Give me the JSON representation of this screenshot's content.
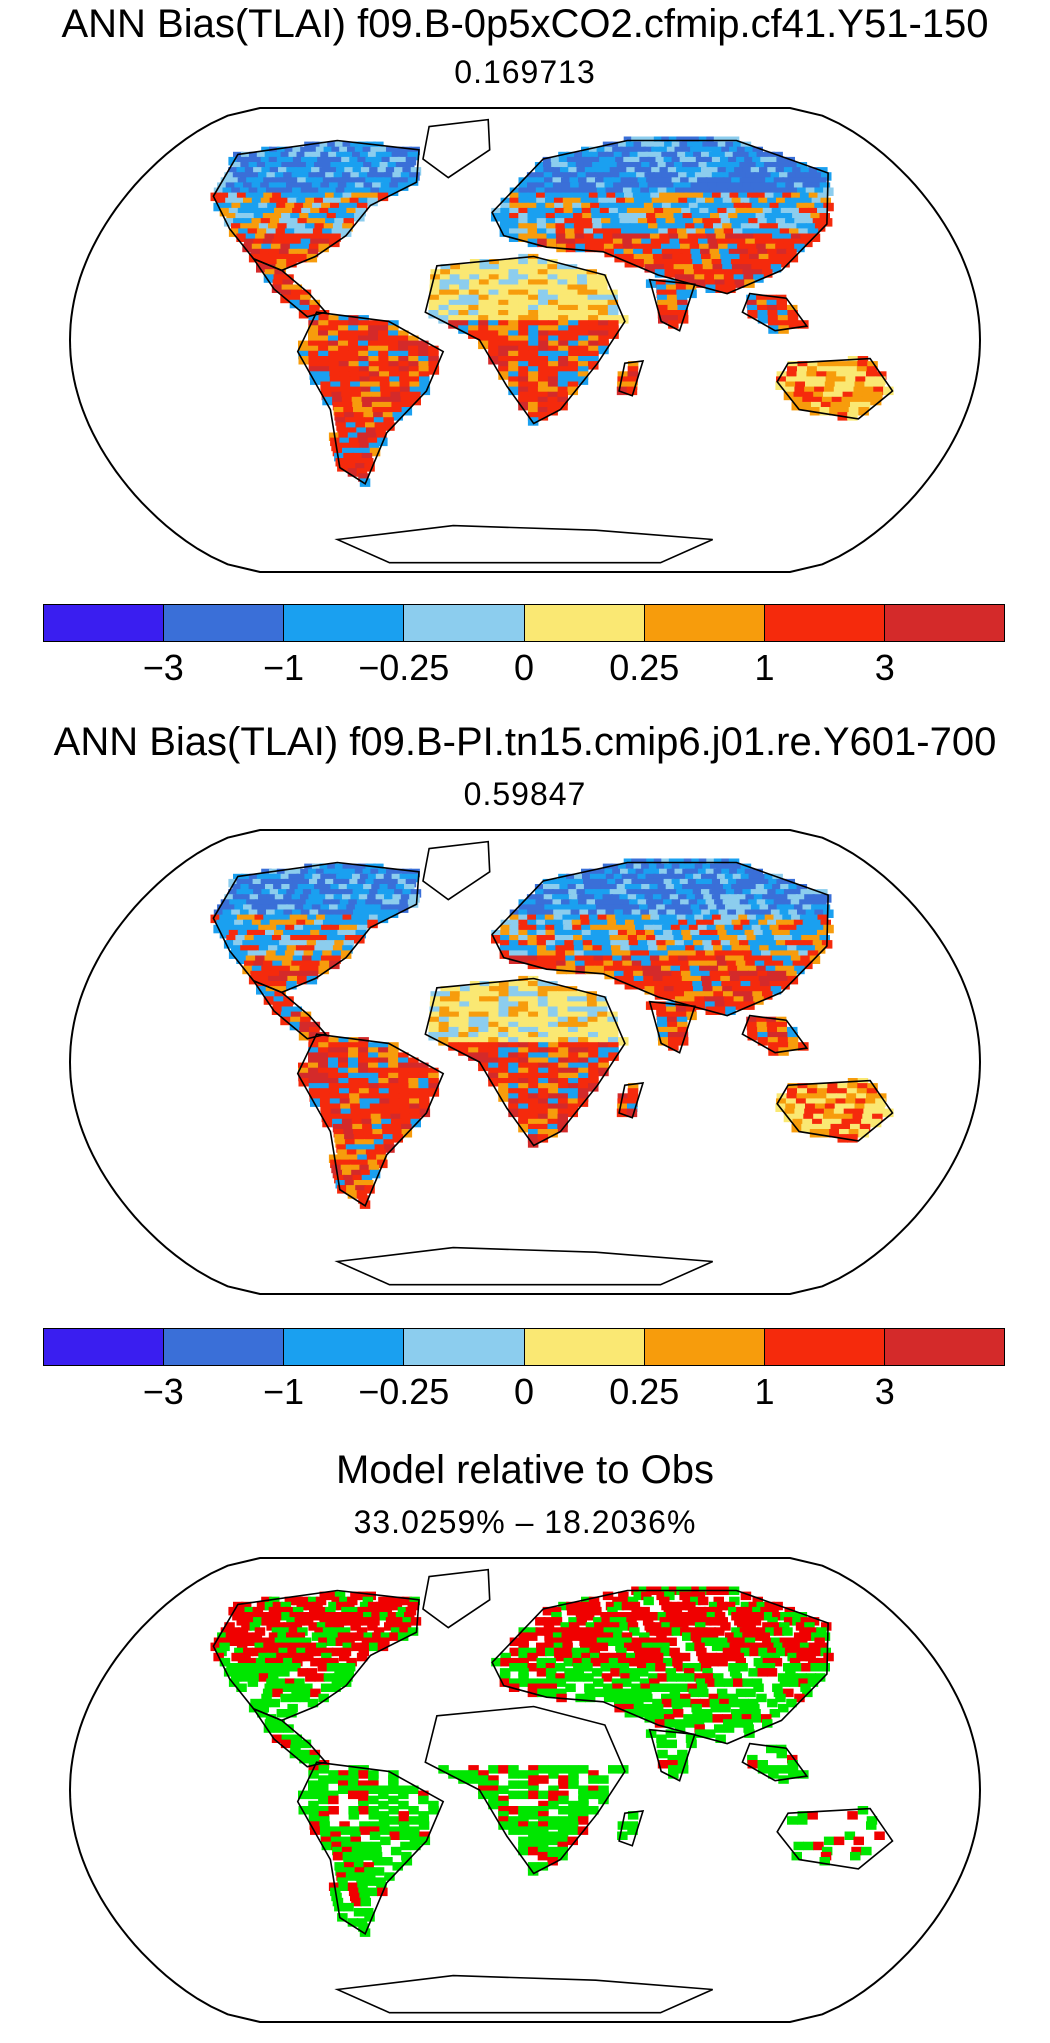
{
  "panels": [
    {
      "title": "ANN Bias(TLAI) f09.B-0p5xCO2.cfmip.cf41.Y51-150",
      "subtitle": "0.169713",
      "kind": "bias"
    },
    {
      "title": "ANN Bias(TLAI) f09.B-PI.tn15.cmip6.j01.re.Y601-700",
      "subtitle": "0.59847",
      "kind": "bias"
    },
    {
      "title": "Model relative to Obs",
      "subtitle": "33.0259%  –  18.2036%",
      "kind": "relative"
    }
  ],
  "colorbar": {
    "colors": [
      "#3a1ef0",
      "#3a6fd8",
      "#1aa0f0",
      "#8ccdee",
      "#fae873",
      "#f79c0c",
      "#f52a0c",
      "#d42a2a"
    ],
    "labels": [
      "−3",
      "−1",
      "−0.25",
      "0",
      "0.25",
      "1",
      "3"
    ]
  },
  "relative_colors": {
    "higher": "#f00000",
    "lower": "#00e600"
  }
}
